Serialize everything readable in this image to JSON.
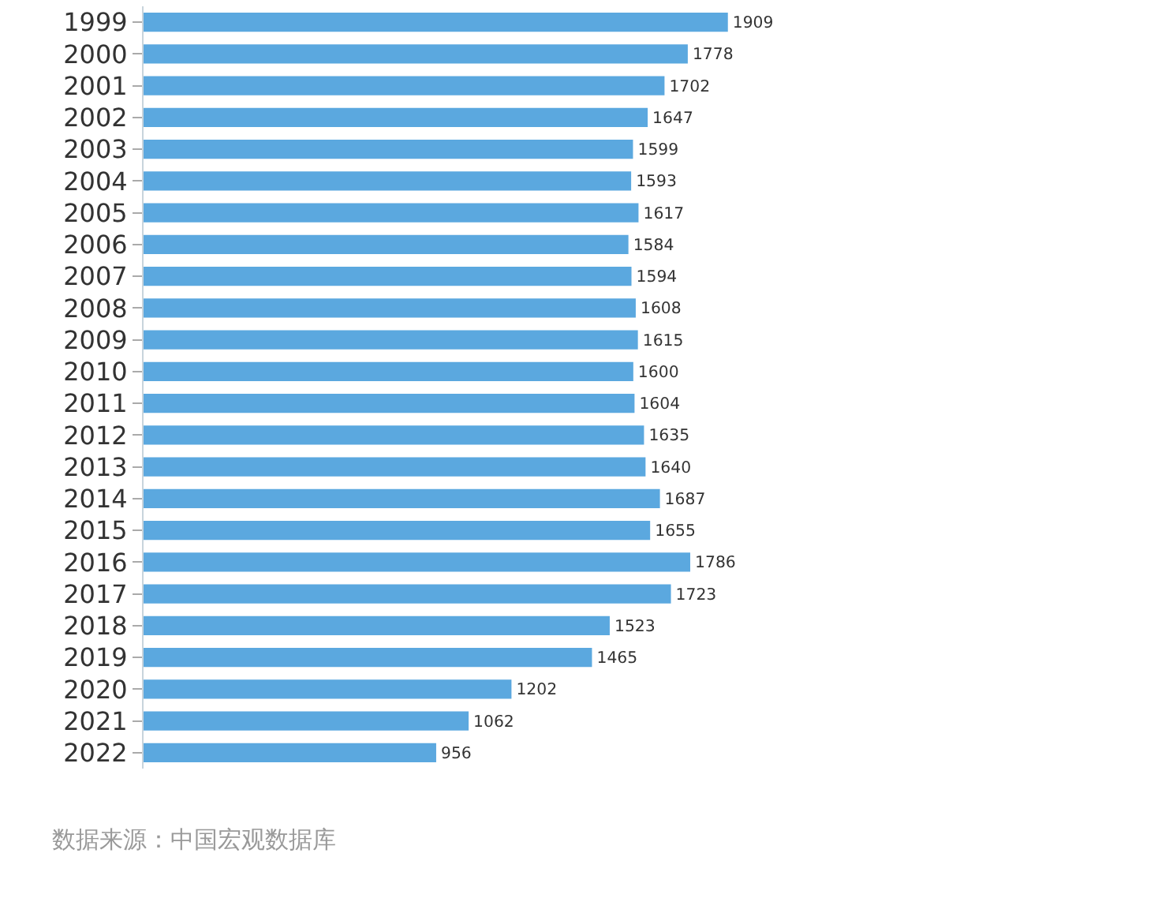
{
  "chart_data": {
    "type": "bar",
    "orientation": "horizontal",
    "data_labels": true,
    "color": "#5ba8df",
    "categories": [
      "1999",
      "2000",
      "2001",
      "2002",
      "2003",
      "2004",
      "2005",
      "2006",
      "2007",
      "2008",
      "2009",
      "2010",
      "2011",
      "2012",
      "2013",
      "2014",
      "2015",
      "2016",
      "2017",
      "2018",
      "2019",
      "2020",
      "2021",
      "2022"
    ],
    "values": [
      1909,
      1778,
      1702,
      1647,
      1599,
      1593,
      1617,
      1584,
      1594,
      1608,
      1615,
      1600,
      1604,
      1635,
      1640,
      1687,
      1655,
      1786,
      1723,
      1523,
      1465,
      1202,
      1062,
      956
    ],
    "annotations": [
      "数据来源：中国宏观数据库"
    ]
  }
}
